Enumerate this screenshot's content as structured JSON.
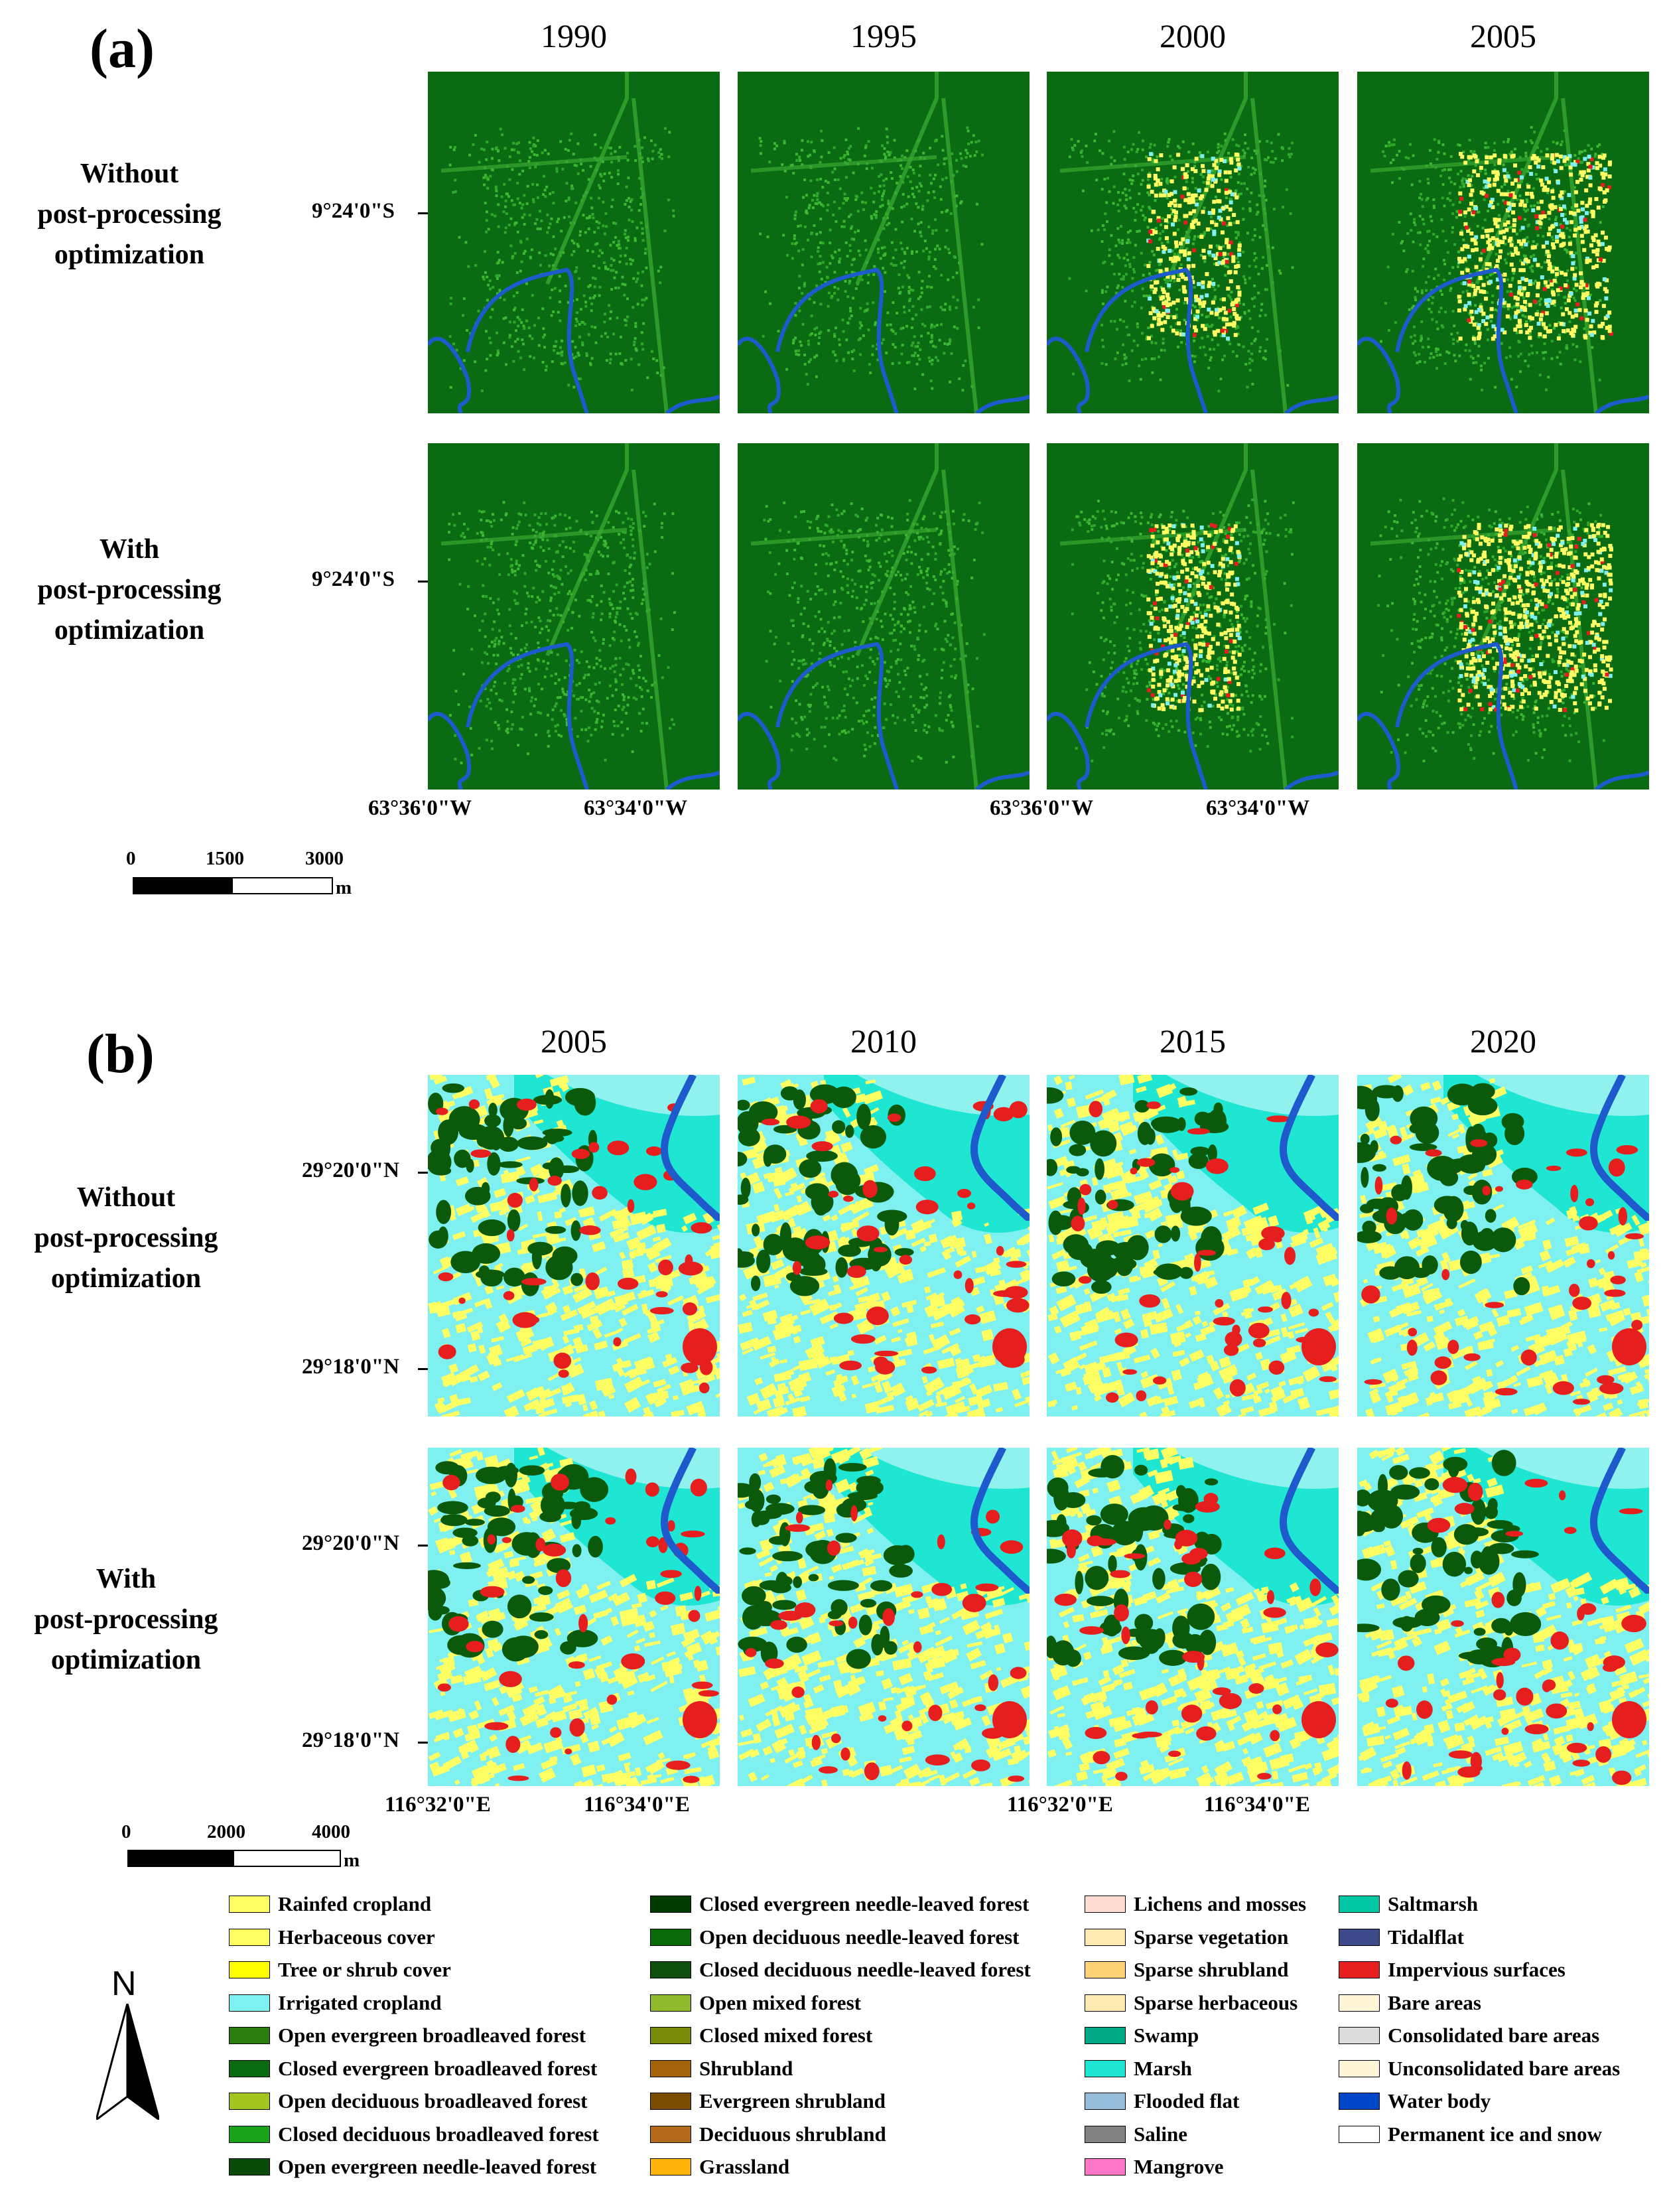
{
  "panel_a": {
    "label": "(a)",
    "years": [
      "1990",
      "1995",
      "2000",
      "2005"
    ],
    "row_labels": [
      "Without\npost-processing\noptimization",
      "With\npost-processing\noptimization"
    ],
    "lat_label": "9°24'0\"S",
    "lon_labels": [
      "63°36'0\"W",
      "63°34'0\"W"
    ],
    "scale": {
      "ticks": [
        "0",
        "1500",
        "3000"
      ],
      "unit": "m"
    }
  },
  "panel_b": {
    "label": "(b)",
    "years": [
      "2005",
      "2010",
      "2015",
      "2020"
    ],
    "row_labels": [
      "Without\npost-processing\noptimization",
      "With\npost-processing\noptimization"
    ],
    "lat_labels": [
      "29°20'0\"N",
      "29°18'0\"N"
    ],
    "lon_labels": [
      "116°32'0\"E",
      "116°34'0\"E"
    ],
    "scale": {
      "ticks": [
        "0",
        "2000",
        "4000"
      ],
      "unit": "m"
    }
  },
  "north_arrow": {
    "label": "N"
  },
  "legend": [
    [
      {
        "label": "Rainfed cropland",
        "color": "#ffff64"
      },
      {
        "label": "Herbaceous cover",
        "color": "#ffff64"
      },
      {
        "label": "Tree or shrub cover",
        "color": "#ffff00"
      },
      {
        "label": "Irrigated cropland",
        "color": "#7ff0f0"
      },
      {
        "label": "Open evergreen broadleaved forest",
        "color": "#2e7d0f"
      },
      {
        "label": "Closed evergreen broadleaved forest",
        "color": "#0b6b12"
      },
      {
        "label": "Open deciduous broadleaved forest",
        "color": "#a3c51f"
      },
      {
        "label": "Closed deciduous broadleaved forest",
        "color": "#1aa31a"
      },
      {
        "label": "Open evergreen needle-leaved forest",
        "color": "#0a4a0a"
      }
    ],
    [
      {
        "label": "Closed evergreen needle-leaved forest",
        "color": "#003c00"
      },
      {
        "label": "Open deciduous needle-leaved forest",
        "color": "#0a6a0a"
      },
      {
        "label": "Closed deciduous needle-leaved forest",
        "color": "#0f500f"
      },
      {
        "label": "Open mixed forest",
        "color": "#8fb82a"
      },
      {
        "label": "Closed mixed forest",
        "color": "#788c0a"
      },
      {
        "label": "Shrubland",
        "color": "#a5640a"
      },
      {
        "label": "Evergreen shrubland",
        "color": "#7a4b00"
      },
      {
        "label": "Deciduous shrubland",
        "color": "#b36a1a"
      },
      {
        "label": "Grassland",
        "color": "#ffb40a"
      }
    ],
    [
      {
        "label": "Lichens and mosses",
        "color": "#ffdcd2"
      },
      {
        "label": "Sparse vegetation",
        "color": "#ffebaf"
      },
      {
        "label": "Sparse shrubland",
        "color": "#ffd278"
      },
      {
        "label": "Sparse herbaceous",
        "color": "#ffebaf"
      },
      {
        "label": "Swamp",
        "color": "#00a884"
      },
      {
        "label": "Marsh",
        "color": "#1ee6d2"
      },
      {
        "label": "Flooded flat",
        "color": "#96bedc"
      },
      {
        "label": "Saline",
        "color": "#828282"
      },
      {
        "label": "Mangrove",
        "color": "#ff78c8"
      }
    ],
    [
      {
        "label": "Saltmarsh",
        "color": "#00c8a5"
      },
      {
        "label": "Tidalflat",
        "color": "#3c4a8c"
      },
      {
        "label": "Impervious surfaces",
        "color": "#e61e1e"
      },
      {
        "label": "Bare areas",
        "color": "#fff5d7"
      },
      {
        "label": "Consolidated bare areas",
        "color": "#dcdcdc"
      },
      {
        "label": "Unconsolidated bare areas",
        "color": "#fff5d7"
      },
      {
        "label": "Water body",
        "color": "#0046c8"
      },
      {
        "label": "Permanent ice and snow",
        "color": "#ffffff"
      }
    ]
  ]
}
